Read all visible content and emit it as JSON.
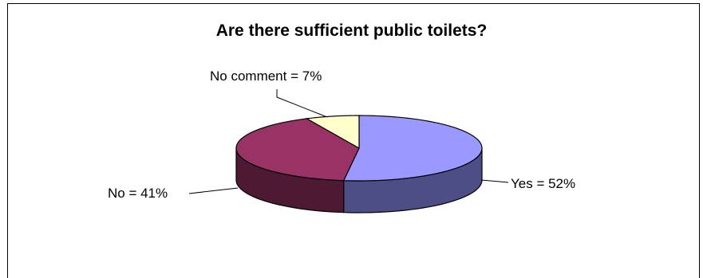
{
  "chart_data": {
    "type": "pie",
    "title": "Are there sufficient public toilets?",
    "categories": [
      "Yes",
      "No",
      "No comment"
    ],
    "values": [
      52,
      41,
      7
    ],
    "data_labels": [
      "Yes = 52%",
      "No = 41%",
      "No comment = 7%"
    ],
    "colors": {
      "Yes": {
        "top": "#9999ff",
        "side": "#4e4e86"
      },
      "No": {
        "top": "#993366",
        "side": "#4e1a33"
      },
      "No comment": {
        "top": "#ffffcc",
        "side": "#8a8a6a"
      }
    },
    "style": "3d",
    "legend": "none"
  }
}
